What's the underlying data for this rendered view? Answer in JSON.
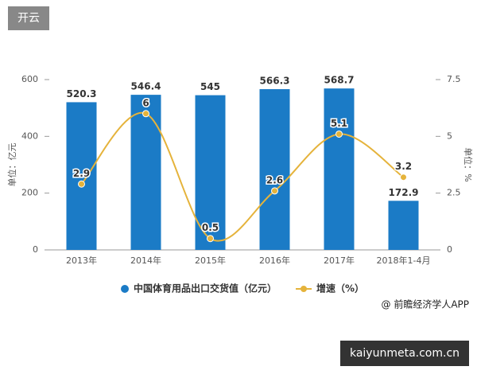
{
  "chart_data": {
    "type": "bar",
    "categories": [
      "2013年",
      "2014年",
      "2015年",
      "2016年",
      "2017年",
      "2018年1-4月"
    ],
    "series": [
      {
        "name": "中国体育用品出口交货值（亿元）",
        "type": "bar",
        "color": "#1b7bc6",
        "values": [
          520.3,
          546.4,
          545,
          566.3,
          568.7,
          172.9
        ]
      },
      {
        "name": "增速（%）",
        "type": "line",
        "axis": "y2",
        "color": "#e5b33b",
        "values": [
          2.9,
          6,
          0.5,
          2.6,
          5.1,
          3.2
        ]
      }
    ],
    "y_label": "单位：亿元",
    "y2_label": "单位：%",
    "ylim": [
      0,
      600
    ],
    "yticks": [
      0,
      200,
      400,
      600
    ],
    "y2lim": [
      0,
      7.5
    ],
    "y2ticks": [
      0,
      2.5,
      5,
      7.5
    ],
    "legend": "bottom"
  },
  "badge": "开云",
  "source": "@ 前瞻经济学人APP",
  "watermark": "kaiyunmeta.com.cn"
}
